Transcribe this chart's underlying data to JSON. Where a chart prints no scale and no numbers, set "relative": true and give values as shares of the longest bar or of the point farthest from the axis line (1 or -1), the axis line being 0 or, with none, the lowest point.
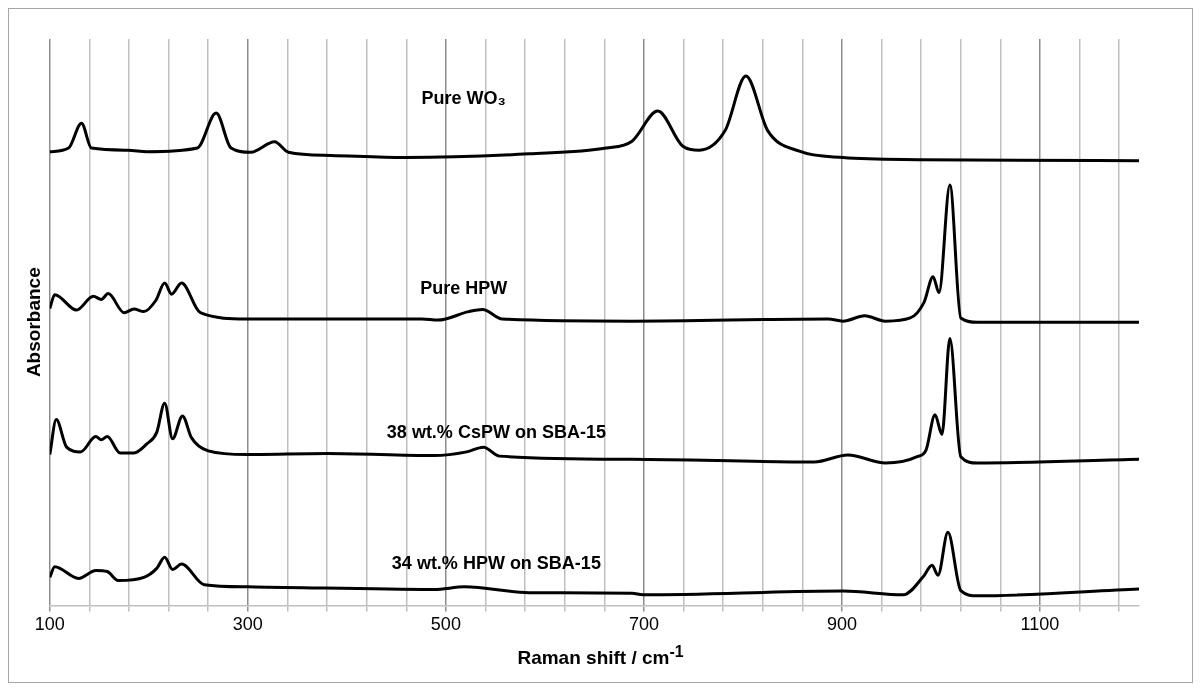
{
  "chart_data": {
    "type": "line",
    "xlabel": "Raman shift / cm$^{-1}$",
    "ylabel": "Absorbance",
    "relative": true,
    "grid": "x",
    "legend": false,
    "marker": "none",
    "line_style": "solid",
    "xlim": [
      100,
      1200
    ],
    "xticks": [
      100,
      {
        "value": 140,
        "label": null
      },
      {
        "value": 180,
        "label": null
      },
      {
        "value": 220,
        "label": null
      },
      {
        "value": 260,
        "label": null
      },
      300,
      {
        "value": 340,
        "label": null
      },
      {
        "value": 380,
        "label": null
      },
      {
        "value": 420,
        "label": null
      },
      {
        "value": 460,
        "label": null
      },
      500,
      {
        "value": 540,
        "label": null
      },
      {
        "value": 580,
        "label": null
      },
      {
        "value": 620,
        "label": null
      },
      {
        "value": 660,
        "label": null
      },
      700,
      {
        "value": 740,
        "label": null
      },
      {
        "value": 780,
        "label": null
      },
      {
        "value": 820,
        "label": null
      },
      {
        "value": 860,
        "label": null
      },
      900,
      {
        "value": 940,
        "label": null
      },
      {
        "value": 980,
        "label": null
      },
      {
        "value": 1020,
        "label": null
      },
      {
        "value": 1060,
        "label": null
      },
      1100,
      {
        "value": 1140,
        "label": null
      },
      {
        "value": 1180,
        "label": null
      }
    ],
    "series": [
      {
        "name": "Pure WO₃",
        "color": "#000000",
        "x": [
          100,
          119,
          132,
          142,
          179,
          198,
          249,
          268,
          283,
          303,
          327,
          341,
          384,
          459,
          584,
          662,
          688,
          714,
          739,
          756,
          782,
          803,
          825,
          857,
          901,
          980,
          1200
        ],
        "values": [
          0.857,
          0.864,
          0.911,
          0.864,
          0.86,
          0.857,
          0.864,
          0.93,
          0.864,
          0.856,
          0.876,
          0.856,
          0.85,
          0.846,
          0.853,
          0.864,
          0.877,
          0.934,
          0.868,
          0.86,
          0.897,
          1.0,
          0.897,
          0.858,
          0.846,
          0.842,
          0.84
        ]
      },
      {
        "name": "Pure HPW",
        "color": "#000000",
        "x": [
          100,
          105,
          127,
          144,
          152,
          159,
          175,
          185,
          195,
          207,
          216,
          223,
          233,
          252,
          299,
          476,
          492,
          523,
          537,
          557,
          688,
          886,
          901,
          923,
          944,
          969,
          983,
          992,
          998,
          1009,
          1020,
          1037,
          1200
        ],
        "values": [
          0.561,
          0.587,
          0.558,
          0.584,
          0.578,
          0.589,
          0.553,
          0.56,
          0.555,
          0.576,
          0.609,
          0.588,
          0.609,
          0.553,
          0.541,
          0.541,
          0.539,
          0.555,
          0.559,
          0.541,
          0.537,
          0.541,
          0.537,
          0.547,
          0.537,
          0.543,
          0.573,
          0.621,
          0.591,
          0.794,
          0.543,
          0.535,
          0.535
        ]
      },
      {
        "name": "38 wt.% CsPW on SBA-15",
        "color": "#000000",
        "x": [
          100,
          106.5,
          117,
          131,
          146.5,
          152,
          158,
          171,
          185,
          198,
          208,
          216,
          224,
          234,
          243,
          260,
          299,
          380,
          488,
          521,
          538,
          554,
          688,
          872,
          906,
          944,
          976,
          985,
          994,
          1001,
          1009,
          1020,
          1037,
          1200
        ],
        "values": [
          0.285,
          0.351,
          0.299,
          0.29,
          0.319,
          0.313,
          0.319,
          0.288,
          0.288,
          0.305,
          0.327,
          0.382,
          0.315,
          0.358,
          0.317,
          0.292,
          0.285,
          0.287,
          0.283,
          0.29,
          0.299,
          0.282,
          0.276,
          0.271,
          0.284,
          0.269,
          0.281,
          0.294,
          0.36,
          0.323,
          0.504,
          0.281,
          0.269,
          0.276
        ]
      },
      {
        "name": "34 wt.% HPW on SBA-15",
        "color": "#000000",
        "x": [
          100,
          105,
          129,
          146.5,
          158,
          169,
          195,
          208,
          216,
          224,
          233,
          256,
          299,
          488,
          519,
          584,
          688,
          699,
          901,
          962,
          982,
          991,
          997,
          1007,
          1020,
          1037,
          1200
        ],
        "values": [
          0.053,
          0.073,
          0.051,
          0.066,
          0.064,
          0.047,
          0.053,
          0.07,
          0.091,
          0.068,
          0.078,
          0.039,
          0.035,
          0.03,
          0.035,
          0.024,
          0.023,
          0.02,
          0.027,
          0.02,
          0.054,
          0.076,
          0.057,
          0.138,
          0.028,
          0.018,
          0.031
        ]
      }
    ]
  }
}
